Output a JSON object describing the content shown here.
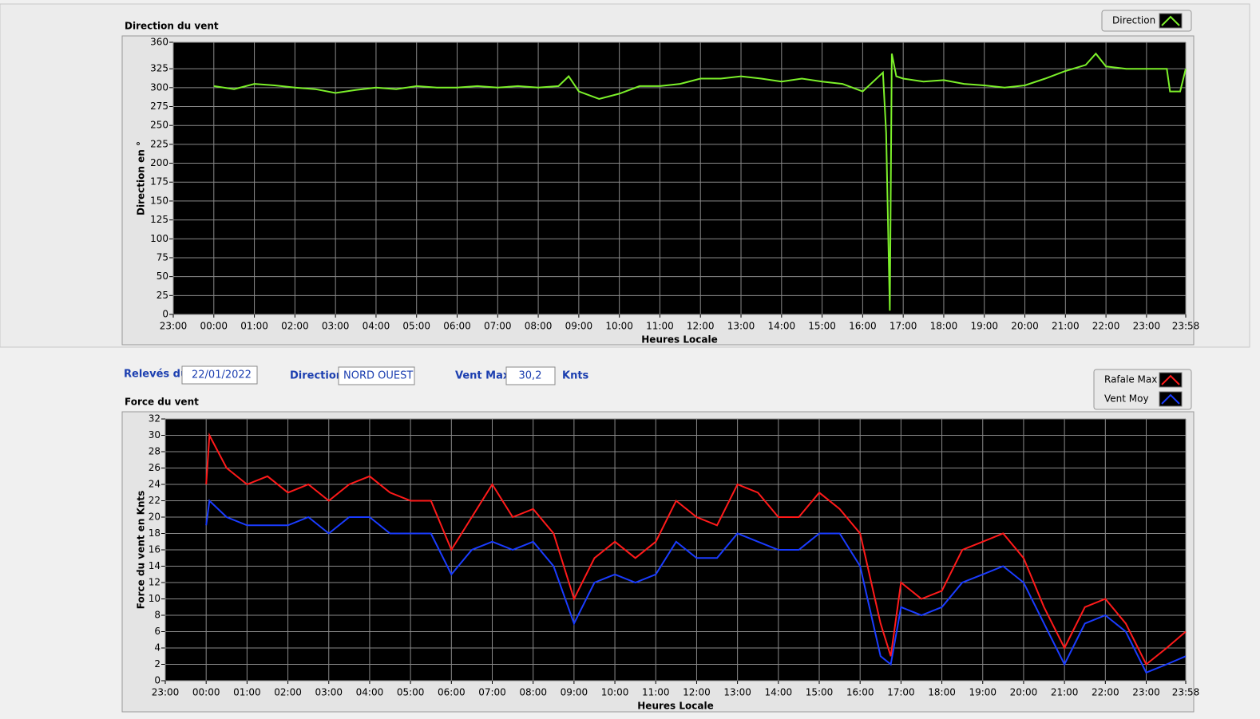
{
  "chart_data": [
    {
      "type": "line",
      "title": "Direction du vent",
      "xlabel": "Heures Locale",
      "ylabel": "Direction en °",
      "xlim": [
        0,
        24.967
      ],
      "ylim": [
        0,
        360
      ],
      "xticks": [
        {
          "value": 0,
          "label": "23:00"
        },
        {
          "value": 1,
          "label": "00:00"
        },
        {
          "value": 2,
          "label": "01:00"
        },
        {
          "value": 3,
          "label": "02:00"
        },
        {
          "value": 4,
          "label": "03:00"
        },
        {
          "value": 5,
          "label": "04:00"
        },
        {
          "value": 6,
          "label": "05:00"
        },
        {
          "value": 7,
          "label": "06:00"
        },
        {
          "value": 8,
          "label": "07:00"
        },
        {
          "value": 9,
          "label": "08:00"
        },
        {
          "value": 10,
          "label": "09:00"
        },
        {
          "value": 11,
          "label": "10:00"
        },
        {
          "value": 12,
          "label": "11:00"
        },
        {
          "value": 13,
          "label": "12:00"
        },
        {
          "value": 14,
          "label": "13:00"
        },
        {
          "value": 15,
          "label": "14:00"
        },
        {
          "value": 16,
          "label": "15:00"
        },
        {
          "value": 17,
          "label": "16:00"
        },
        {
          "value": 18,
          "label": "17:00"
        },
        {
          "value": 19,
          "label": "18:00"
        },
        {
          "value": 20,
          "label": "19:00"
        },
        {
          "value": 21,
          "label": "20:00"
        },
        {
          "value": 22,
          "label": "21:00"
        },
        {
          "value": 23,
          "label": "22:00"
        },
        {
          "value": 24,
          "label": "23:00"
        },
        {
          "value": 24.967,
          "label": "23:58"
        }
      ],
      "yticks": [
        0,
        25,
        50,
        75,
        100,
        125,
        150,
        175,
        200,
        225,
        250,
        275,
        300,
        325,
        360
      ],
      "grid": true,
      "legend": "top-right",
      "x": [
        1,
        1.5,
        2,
        2.5,
        3,
        3.5,
        4,
        4.5,
        5,
        5.5,
        6,
        6.5,
        7,
        7.5,
        8,
        8.5,
        9,
        9.5,
        9.75,
        10,
        10.5,
        11,
        11.5,
        12,
        12.5,
        13,
        13.5,
        14,
        14.5,
        15,
        15.5,
        16,
        16.5,
        17,
        17.5,
        17.58,
        17.67,
        17.72,
        17.83,
        18,
        18.5,
        19,
        19.5,
        20,
        20.5,
        21,
        21.5,
        22,
        22.5,
        22.75,
        23,
        23.5,
        24,
        24.5,
        24.58,
        24.83,
        24.967
      ],
      "series": [
        {
          "name": "Direction",
          "color": "#7cf02a",
          "values": [
            302,
            298,
            305,
            303,
            300,
            298,
            293,
            297,
            300,
            298,
            302,
            300,
            300,
            302,
            300,
            302,
            300,
            302,
            315,
            295,
            285,
            292,
            302,
            302,
            305,
            312,
            312,
            315,
            312,
            308,
            312,
            308,
            305,
            295,
            320,
            240,
            5,
            345,
            315,
            312,
            308,
            310,
            305,
            303,
            300,
            303,
            312,
            322,
            330,
            345,
            328,
            325,
            325,
            325,
            295,
            295,
            325
          ]
        }
      ]
    },
    {
      "type": "line",
      "title": "Force du vent",
      "xlabel": "Heures Locale",
      "ylabel": "Force du vent en Knts",
      "xlim": [
        0,
        24.967
      ],
      "ylim": [
        0,
        32
      ],
      "xticks": [
        {
          "value": 0,
          "label": "23:00"
        },
        {
          "value": 1,
          "label": "00:00"
        },
        {
          "value": 2,
          "label": "01:00"
        },
        {
          "value": 3,
          "label": "02:00"
        },
        {
          "value": 4,
          "label": "03:00"
        },
        {
          "value": 5,
          "label": "04:00"
        },
        {
          "value": 6,
          "label": "05:00"
        },
        {
          "value": 7,
          "label": "06:00"
        },
        {
          "value": 8,
          "label": "07:00"
        },
        {
          "value": 9,
          "label": "08:00"
        },
        {
          "value": 10,
          "label": "09:00"
        },
        {
          "value": 11,
          "label": "10:00"
        },
        {
          "value": 12,
          "label": "11:00"
        },
        {
          "value": 13,
          "label": "12:00"
        },
        {
          "value": 14,
          "label": "13:00"
        },
        {
          "value": 15,
          "label": "14:00"
        },
        {
          "value": 16,
          "label": "15:00"
        },
        {
          "value": 17,
          "label": "16:00"
        },
        {
          "value": 18,
          "label": "17:00"
        },
        {
          "value": 19,
          "label": "18:00"
        },
        {
          "value": 20,
          "label": "19:00"
        },
        {
          "value": 21,
          "label": "20:00"
        },
        {
          "value": 22,
          "label": "21:00"
        },
        {
          "value": 23,
          "label": "22:00"
        },
        {
          "value": 24,
          "label": "23:00"
        },
        {
          "value": 24.967,
          "label": "23:58"
        }
      ],
      "yticks": [
        0,
        2,
        4,
        6,
        8,
        10,
        12,
        14,
        16,
        18,
        20,
        22,
        24,
        26,
        28,
        30,
        32
      ],
      "grid": true,
      "legend": "top-right",
      "x": [
        1,
        1.08,
        1.5,
        2,
        2.5,
        3,
        3.5,
        4,
        4.5,
        5,
        5.5,
        6,
        6.5,
        7,
        7.5,
        8,
        8.5,
        9,
        9.5,
        10,
        10.5,
        11,
        11.5,
        12,
        12.5,
        13,
        13.5,
        14,
        14.5,
        15,
        15.5,
        16,
        16.5,
        17,
        17.5,
        17.75,
        18,
        18.5,
        19,
        19.5,
        20,
        20.5,
        21,
        21.5,
        22,
        22.5,
        23,
        23.5,
        24,
        24.5,
        24.967
      ],
      "series": [
        {
          "name": "Rafale Max",
          "color": "#ff1a1a",
          "values": [
            24,
            30,
            26,
            24,
            25,
            23,
            24,
            22,
            24,
            25,
            23,
            22,
            22,
            16,
            20,
            24,
            20,
            21,
            18,
            10,
            15,
            17,
            15,
            17,
            22,
            20,
            19,
            24,
            23,
            20,
            20,
            23,
            21,
            18,
            7,
            3,
            12,
            10,
            11,
            16,
            17,
            18,
            15,
            9,
            4,
            9,
            10,
            7,
            2,
            4,
            6
          ]
        },
        {
          "name": "Vent Moy",
          "color": "#1a3cff",
          "values": [
            19,
            22,
            20,
            19,
            19,
            19,
            20,
            18,
            20,
            20,
            18,
            18,
            18,
            13,
            16,
            17,
            16,
            17,
            14,
            7,
            12,
            13,
            12,
            13,
            17,
            15,
            15,
            18,
            17,
            16,
            16,
            18,
            18,
            14,
            3,
            2,
            9,
            8,
            9,
            12,
            13,
            14,
            12,
            7,
            2,
            7,
            8,
            6,
            1,
            2,
            3
          ]
        }
      ]
    }
  ],
  "controls": {
    "date_label": "Relevés du",
    "date": "22/01/2022",
    "direction_label": "Direction",
    "direction": "NORD OUEST",
    "vent_max_label": "Vent Max",
    "vent_max": "30,2",
    "unit": "Knts"
  }
}
